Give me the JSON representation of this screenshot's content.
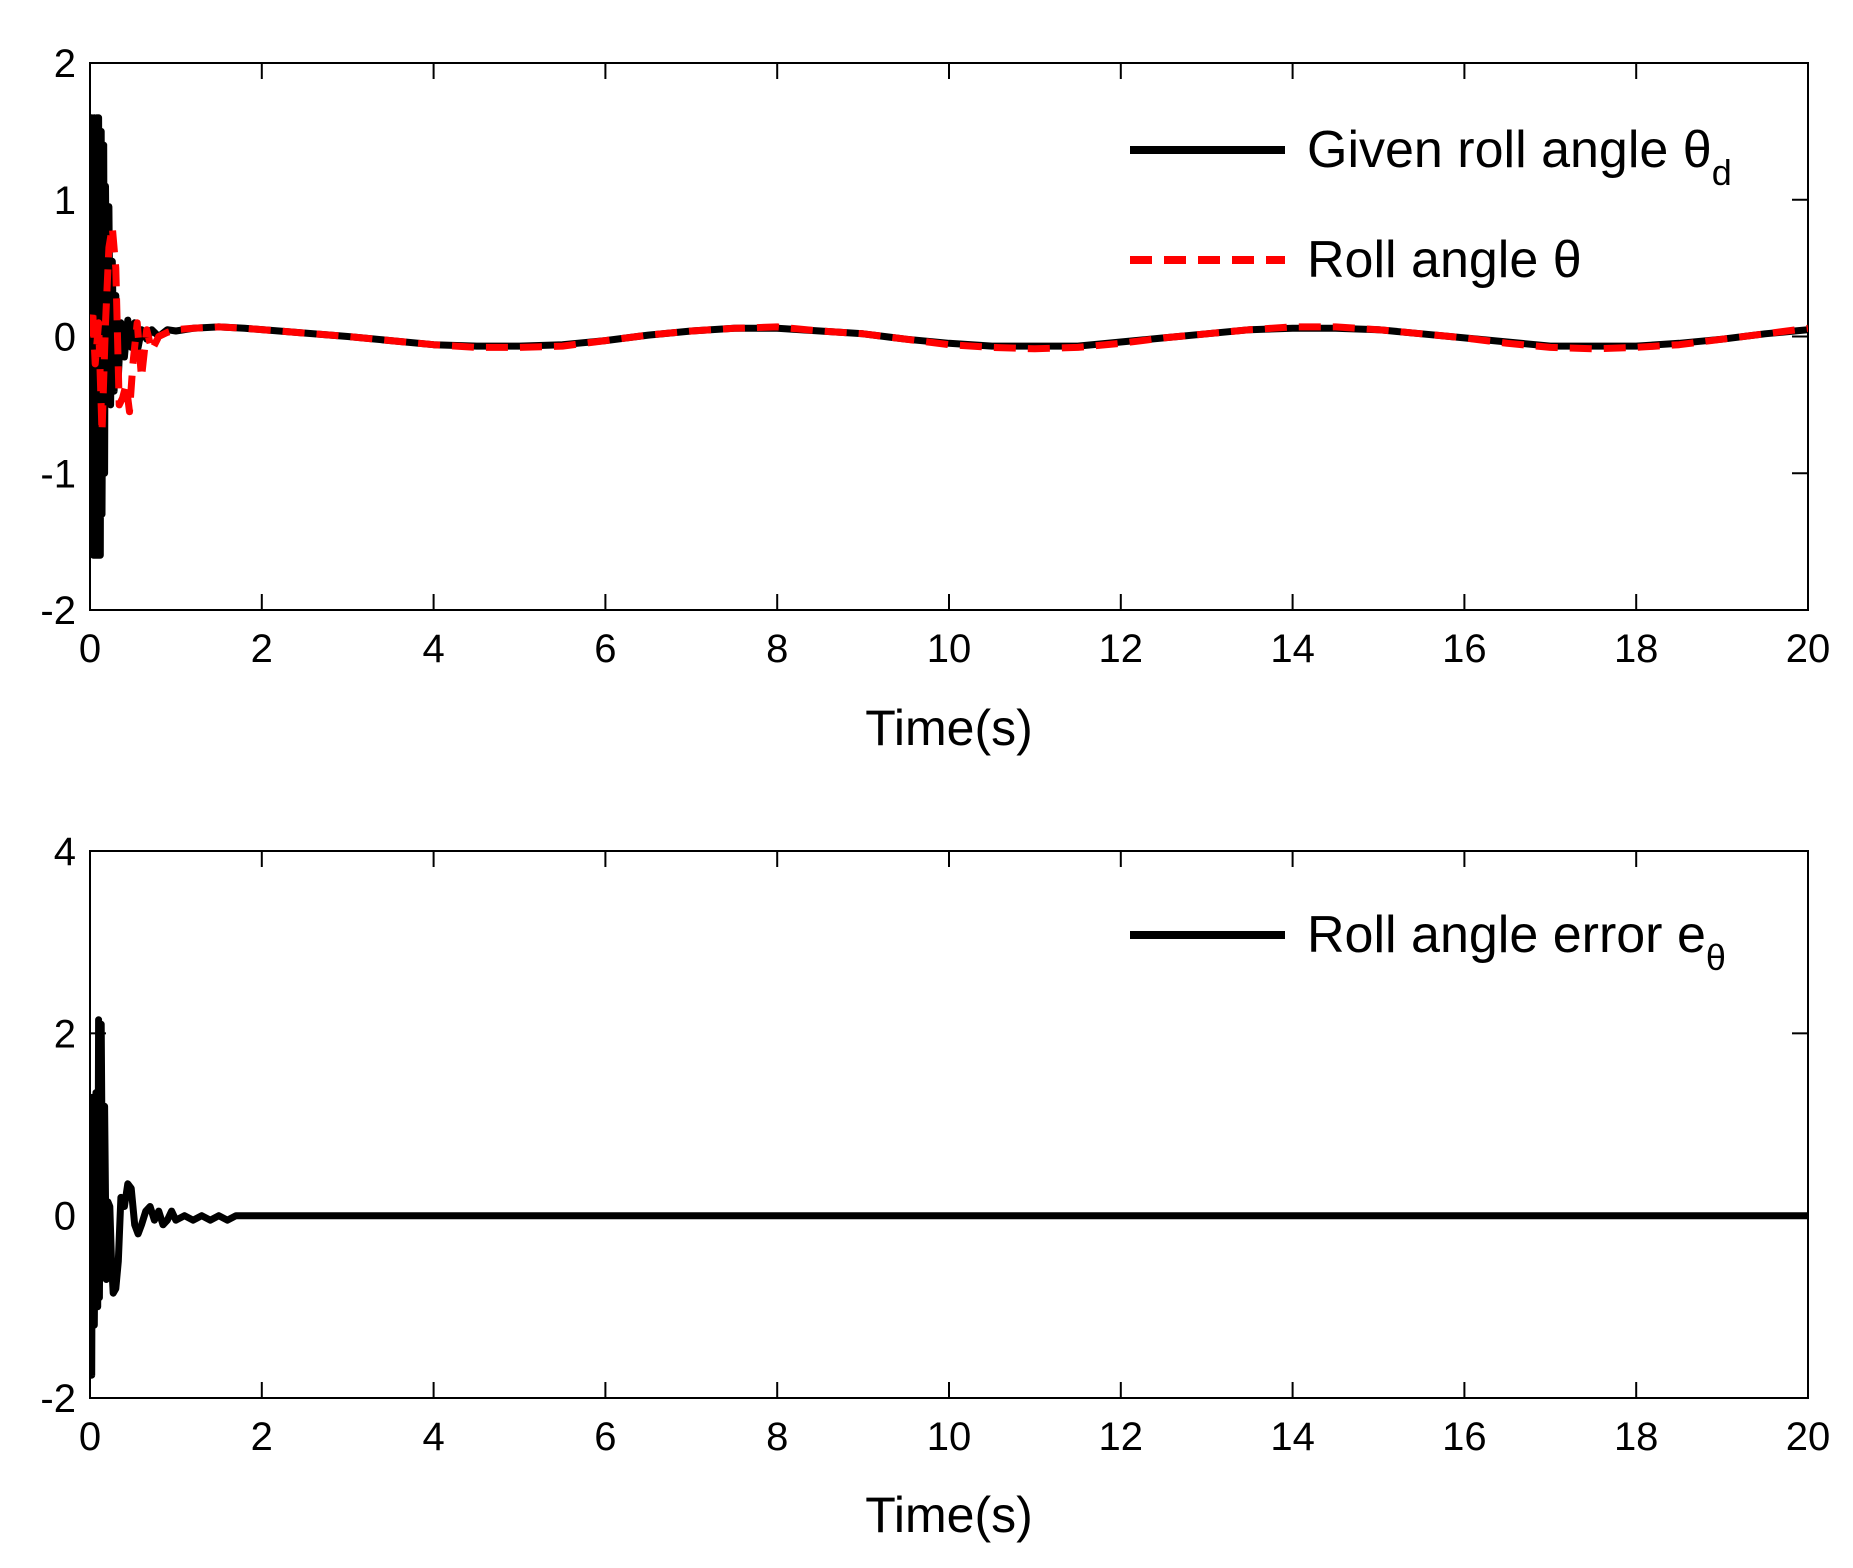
{
  "chart_data": [
    {
      "type": "line",
      "title": "",
      "xlabel": "Time(s)",
      "ylabel": "",
      "xlim": [
        0,
        20
      ],
      "ylim": [
        -2,
        2
      ],
      "xticks": [
        0,
        2,
        4,
        6,
        8,
        10,
        12,
        14,
        16,
        18,
        20
      ],
      "yticks": [
        -2,
        -1,
        0,
        1,
        2
      ],
      "grid": false,
      "legend_position": "top-right",
      "legend": [
        {
          "text": "Given roll angle θ",
          "sub": "d",
          "series": 0
        },
        {
          "text": "Roll angle θ",
          "sub": "",
          "series": 1
        }
      ],
      "series": [
        {
          "name": "Given roll angle θd",
          "color": "#000000",
          "style": "solid",
          "x": [
            0,
            0.02,
            0.04,
            0.05,
            0.06,
            0.08,
            0.09,
            0.1,
            0.12,
            0.13,
            0.14,
            0.16,
            0.17,
            0.18,
            0.2,
            0.22,
            0.24,
            0.26,
            0.28,
            0.3,
            0.33,
            0.36,
            0.4,
            0.44,
            0.48,
            0.52,
            0.56,
            0.6,
            0.66,
            0.72,
            0.8,
            0.9,
            1.0,
            1.2,
            1.5,
            1.8,
            2.2,
            2.6,
            3.0,
            3.5,
            4.0,
            4.5,
            5.0,
            5.5,
            6.0,
            6.5,
            7.0,
            7.5,
            8.0,
            8.5,
            9.0,
            9.5,
            10.0,
            10.5,
            11.0,
            11.5,
            12.0,
            12.5,
            13.0,
            13.5,
            14.0,
            14.5,
            15.0,
            15.5,
            16.0,
            16.5,
            17.0,
            17.5,
            18.0,
            18.5,
            19.0,
            19.5,
            20.0
          ],
          "y": [
            0,
            1.6,
            -1.6,
            1.6,
            -1.6,
            1.6,
            -1.6,
            1.6,
            -1.6,
            1.5,
            -1.3,
            1.4,
            -1.0,
            1.1,
            -0.4,
            0.95,
            -0.5,
            0.55,
            -0.4,
            0.3,
            -0.3,
            0.1,
            -0.15,
            0.12,
            -0.08,
            0.1,
            -0.08,
            0.05,
            -0.02,
            0.05,
            0.0,
            0.05,
            0.04,
            0.06,
            0.07,
            0.06,
            0.04,
            0.02,
            0.0,
            -0.03,
            -0.06,
            -0.07,
            -0.07,
            -0.06,
            -0.03,
            0.01,
            0.04,
            0.06,
            0.06,
            0.04,
            0.02,
            -0.02,
            -0.05,
            -0.07,
            -0.07,
            -0.07,
            -0.04,
            -0.01,
            0.02,
            0.05,
            0.06,
            0.06,
            0.05,
            0.02,
            -0.01,
            -0.04,
            -0.07,
            -0.07,
            -0.07,
            -0.05,
            -0.02,
            0.02,
            0.05
          ]
        },
        {
          "name": "Roll angle θ",
          "color": "#ff0000",
          "style": "dashed",
          "x": [
            0,
            0.03,
            0.06,
            0.1,
            0.14,
            0.18,
            0.22,
            0.26,
            0.3,
            0.34,
            0.38,
            0.42,
            0.46,
            0.5,
            0.55,
            0.6,
            0.66,
            0.72,
            0.8,
            0.9,
            1.0,
            1.2,
            1.5,
            1.8,
            2.2,
            2.6,
            3.0,
            3.5,
            4.0,
            4.5,
            5.0,
            5.5,
            6.0,
            6.5,
            7.0,
            7.5,
            8.0,
            8.5,
            9.0,
            9.5,
            10.0,
            10.5,
            11.0,
            11.5,
            12.0,
            12.5,
            13.0,
            13.5,
            14.0,
            14.5,
            15.0,
            15.5,
            16.0,
            16.5,
            17.0,
            17.5,
            18.0,
            18.5,
            19.0,
            19.5,
            20.0
          ],
          "y": [
            0,
            0.2,
            -0.2,
            0.1,
            -0.7,
            0.1,
            0.65,
            0.8,
            0.5,
            -0.5,
            -0.45,
            -0.35,
            -0.55,
            -0.2,
            0.1,
            -0.3,
            0.05,
            -0.1,
            0.0,
            0.03,
            0.05,
            0.06,
            0.07,
            0.06,
            0.04,
            0.02,
            0.0,
            -0.03,
            -0.06,
            -0.08,
            -0.08,
            -0.07,
            -0.03,
            0.01,
            0.04,
            0.06,
            0.07,
            0.04,
            0.02,
            -0.02,
            -0.06,
            -0.08,
            -0.09,
            -0.08,
            -0.05,
            -0.01,
            0.02,
            0.05,
            0.07,
            0.07,
            0.05,
            0.02,
            -0.01,
            -0.05,
            -0.08,
            -0.09,
            -0.08,
            -0.06,
            -0.02,
            0.02,
            0.06
          ]
        }
      ]
    },
    {
      "type": "line",
      "title": "",
      "xlabel": "Time(s)",
      "ylabel": "",
      "xlim": [
        0,
        20
      ],
      "ylim": [
        -2,
        4
      ],
      "xticks": [
        0,
        2,
        4,
        6,
        8,
        10,
        12,
        14,
        16,
        18,
        20
      ],
      "yticks": [
        -2,
        0,
        2,
        4
      ],
      "grid": false,
      "legend_position": "top-right",
      "legend": [
        {
          "text": "Roll angle error e",
          "sub": "θ",
          "series": 0
        }
      ],
      "series": [
        {
          "name": "Roll angle error eθ",
          "color": "#000000",
          "style": "solid",
          "x": [
            0,
            0.02,
            0.03,
            0.05,
            0.07,
            0.09,
            0.1,
            0.11,
            0.13,
            0.15,
            0.17,
            0.19,
            0.21,
            0.23,
            0.25,
            0.27,
            0.3,
            0.33,
            0.36,
            0.4,
            0.44,
            0.48,
            0.52,
            0.56,
            0.6,
            0.65,
            0.7,
            0.75,
            0.8,
            0.85,
            0.9,
            0.95,
            1.0,
            1.1,
            1.2,
            1.3,
            1.4,
            1.5,
            1.6,
            1.7,
            1.8,
            2.0,
            20.0
          ],
          "y": [
            0,
            -1.75,
            1.3,
            -1.2,
            1.35,
            -1.0,
            2.15,
            -0.9,
            2.1,
            -0.6,
            1.2,
            -0.7,
            0.15,
            0.1,
            -0.5,
            -0.85,
            -0.8,
            -0.5,
            0.2,
            0.1,
            0.35,
            0.3,
            -0.1,
            -0.2,
            -0.1,
            0.05,
            0.1,
            -0.05,
            0.05,
            -0.1,
            -0.05,
            0.05,
            -0.05,
            0.0,
            -0.05,
            0.0,
            -0.05,
            0.0,
            -0.05,
            0.0,
            0.0,
            0.0,
            0.0
          ]
        }
      ]
    }
  ]
}
